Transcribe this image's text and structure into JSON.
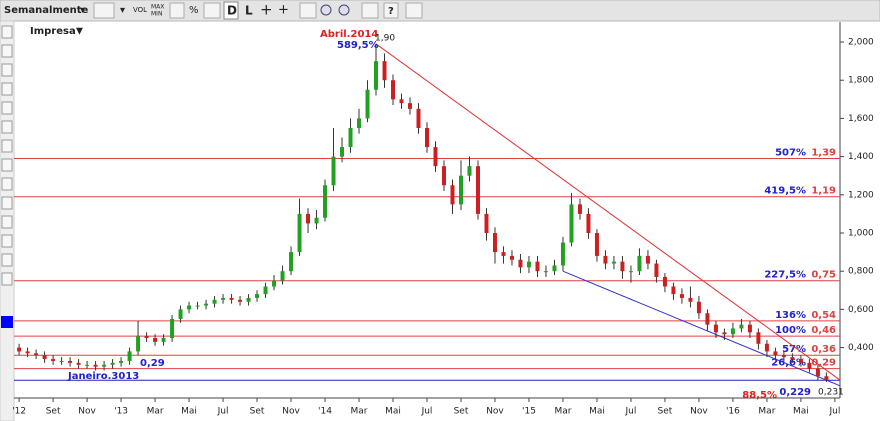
{
  "toolbar": {
    "period": "Semanalmente",
    "buttons": [
      "VOL",
      "MAX",
      "MIN",
      "%",
      "D",
      "L",
      "?"
    ]
  },
  "chart_data": {
    "type": "candlestick",
    "title": "Impresa",
    "up_color": "#22a022",
    "down_color": "#cc2020",
    "xlim": [
      -0.3,
      48.3
    ],
    "ylim": [
      0.136,
      2.063
    ],
    "xticks": [
      {
        "value": 0,
        "label": "'12"
      },
      {
        "value": 2,
        "label": "Set"
      },
      {
        "value": 4,
        "label": "Nov"
      },
      {
        "value": 6,
        "label": "'13"
      },
      {
        "value": 8,
        "label": "Mar"
      },
      {
        "value": 10,
        "label": "Mai"
      },
      {
        "value": 12,
        "label": "Jul"
      },
      {
        "value": 14,
        "label": "Set"
      },
      {
        "value": 16,
        "label": "Nov"
      },
      {
        "value": 18,
        "label": "'14"
      },
      {
        "value": 20,
        "label": "Mar"
      },
      {
        "value": 22,
        "label": "Mai"
      },
      {
        "value": 24,
        "label": "Jul"
      },
      {
        "value": 26,
        "label": "Set"
      },
      {
        "value": 28,
        "label": "Nov"
      },
      {
        "value": 30,
        "label": "'15"
      },
      {
        "value": 32,
        "label": "Mar"
      },
      {
        "value": 34,
        "label": "Mai"
      },
      {
        "value": 36,
        "label": "Jul"
      },
      {
        "value": 38,
        "label": "Set"
      },
      {
        "value": 40,
        "label": "Nov"
      },
      {
        "value": 42,
        "label": "'16"
      },
      {
        "value": 44,
        "label": "Mar"
      },
      {
        "value": 46,
        "label": "Mai"
      },
      {
        "value": 48,
        "label": "Jul"
      }
    ],
    "yticks": [
      {
        "value": 0.4,
        "label": "0,400"
      },
      {
        "value": 0.6,
        "label": "0,600"
      },
      {
        "value": 0.8,
        "label": "0,800"
      },
      {
        "value": 1,
        "label": "1,000"
      },
      {
        "value": 1.2,
        "label": "1,200"
      },
      {
        "value": 1.4,
        "label": "1,400"
      },
      {
        "value": 1.6,
        "label": "1,600"
      },
      {
        "value": 1.8,
        "label": "1,800"
      },
      {
        "value": 2,
        "label": "2,000"
      }
    ],
    "levels": [
      {
        "value": 1.39,
        "label": "1,39",
        "pct": "507%",
        "color": "#e04040"
      },
      {
        "value": 1.19,
        "label": "1,19",
        "pct": "419,5%",
        "color": "#e04040"
      },
      {
        "value": 0.75,
        "label": "0,75",
        "pct": "227,5%",
        "color": "#e04040"
      },
      {
        "value": 0.54,
        "label": "0,54",
        "pct": "136%",
        "color": "#e04040"
      },
      {
        "value": 0.46,
        "label": "0,46",
        "pct": "100%",
        "color": "#e04040"
      },
      {
        "value": 0.36,
        "label": "0,36",
        "pct": "57%",
        "color": "#e04040"
      },
      {
        "value": 0.29,
        "label": "0,29",
        "pct": "26,6%",
        "color": "#e04040"
      },
      {
        "value": 0.229,
        "label": "0,229",
        "pct": "88,5%",
        "color": "#2020c0"
      }
    ],
    "trendlines": [
      {
        "color": "#e03030",
        "points": [
          [
            21,
            1.99
          ],
          [
            48.3,
            0.23
          ]
        ]
      },
      {
        "color": "#3030d0",
        "points": [
          [
            32,
            0.8
          ],
          [
            48.3,
            0.2
          ]
        ]
      }
    ],
    "annotations": [
      "Abril.2014",
      "589,5%",
      "1,90",
      "0,29",
      "Janeiro.3013",
      "0,231"
    ],
    "candles": [
      [
        0,
        0.4,
        0.42,
        0.36,
        0.38
      ],
      [
        0.5,
        0.38,
        0.4,
        0.35,
        0.37
      ],
      [
        1,
        0.37,
        0.39,
        0.34,
        0.36
      ],
      [
        1.5,
        0.36,
        0.38,
        0.32,
        0.34
      ],
      [
        2,
        0.34,
        0.36,
        0.31,
        0.33
      ],
      [
        2.5,
        0.33,
        0.35,
        0.31,
        0.33
      ],
      [
        3,
        0.33,
        0.35,
        0.3,
        0.32
      ],
      [
        3.5,
        0.32,
        0.34,
        0.29,
        0.31
      ],
      [
        4,
        0.31,
        0.33,
        0.29,
        0.31
      ],
      [
        4.5,
        0.31,
        0.33,
        0.28,
        0.3
      ],
      [
        5,
        0.3,
        0.33,
        0.28,
        0.31
      ],
      [
        5.5,
        0.31,
        0.34,
        0.29,
        0.32
      ],
      [
        6,
        0.32,
        0.35,
        0.3,
        0.33
      ],
      [
        6.5,
        0.33,
        0.4,
        0.31,
        0.38
      ],
      [
        7,
        0.38,
        0.54,
        0.36,
        0.46
      ],
      [
        7.5,
        0.46,
        0.48,
        0.43,
        0.45
      ],
      [
        8,
        0.45,
        0.47,
        0.41,
        0.43
      ],
      [
        8.5,
        0.43,
        0.47,
        0.41,
        0.45
      ],
      [
        9,
        0.45,
        0.57,
        0.43,
        0.55
      ],
      [
        9.5,
        0.55,
        0.62,
        0.53,
        0.6
      ],
      [
        10,
        0.6,
        0.64,
        0.58,
        0.62
      ],
      [
        10.5,
        0.62,
        0.64,
        0.6,
        0.62
      ],
      [
        11,
        0.62,
        0.65,
        0.6,
        0.63
      ],
      [
        11.5,
        0.63,
        0.67,
        0.61,
        0.65
      ],
      [
        12,
        0.65,
        0.68,
        0.63,
        0.66
      ],
      [
        12.5,
        0.66,
        0.68,
        0.63,
        0.65
      ],
      [
        13,
        0.65,
        0.67,
        0.62,
        0.64
      ],
      [
        13.5,
        0.64,
        0.68,
        0.62,
        0.66
      ],
      [
        14,
        0.66,
        0.7,
        0.64,
        0.68
      ],
      [
        14.5,
        0.68,
        0.74,
        0.66,
        0.72
      ],
      [
        15,
        0.72,
        0.78,
        0.7,
        0.75
      ],
      [
        15.5,
        0.75,
        0.83,
        0.73,
        0.8
      ],
      [
        16,
        0.8,
        0.93,
        0.78,
        0.9
      ],
      [
        16.5,
        0.9,
        1.18,
        0.88,
        1.1
      ],
      [
        17,
        1.1,
        1.13,
        1.0,
        1.05
      ],
      [
        17.5,
        1.05,
        1.12,
        1.02,
        1.08
      ],
      [
        18,
        1.08,
        1.28,
        1.06,
        1.25
      ],
      [
        18.5,
        1.25,
        1.55,
        1.22,
        1.4
      ],
      [
        19,
        1.4,
        1.5,
        1.37,
        1.45
      ],
      [
        19.5,
        1.45,
        1.6,
        1.42,
        1.55
      ],
      [
        20,
        1.55,
        1.65,
        1.52,
        1.6
      ],
      [
        20.5,
        1.6,
        1.8,
        1.58,
        1.75
      ],
      [
        21,
        1.75,
        1.99,
        1.72,
        1.9
      ],
      [
        21.5,
        1.9,
        1.94,
        1.76,
        1.8
      ],
      [
        22,
        1.8,
        1.83,
        1.67,
        1.7
      ],
      [
        22.5,
        1.7,
        1.73,
        1.65,
        1.68
      ],
      [
        23,
        1.68,
        1.71,
        1.62,
        1.65
      ],
      [
        23.5,
        1.65,
        1.68,
        1.52,
        1.55
      ],
      [
        24,
        1.55,
        1.58,
        1.42,
        1.45
      ],
      [
        24.5,
        1.45,
        1.48,
        1.32,
        1.35
      ],
      [
        25,
        1.35,
        1.38,
        1.22,
        1.25
      ],
      [
        25.5,
        1.25,
        1.28,
        1.1,
        1.15
      ],
      [
        26,
        1.15,
        1.38,
        1.12,
        1.3
      ],
      [
        26.5,
        1.3,
        1.4,
        1.27,
        1.35
      ],
      [
        27,
        1.35,
        1.38,
        1.07,
        1.1
      ],
      [
        27.5,
        1.1,
        1.13,
        0.96,
        1.0
      ],
      [
        28,
        1.0,
        1.03,
        0.84,
        0.9
      ],
      [
        28.5,
        0.9,
        0.93,
        0.84,
        0.88
      ],
      [
        29,
        0.88,
        0.91,
        0.83,
        0.86
      ],
      [
        29.5,
        0.86,
        0.89,
        0.79,
        0.82
      ],
      [
        30,
        0.82,
        0.88,
        0.79,
        0.85
      ],
      [
        30.5,
        0.85,
        0.88,
        0.77,
        0.8
      ],
      [
        31,
        0.8,
        0.83,
        0.77,
        0.8
      ],
      [
        31.5,
        0.8,
        0.86,
        0.78,
        0.83
      ],
      [
        32,
        0.83,
        0.98,
        0.8,
        0.95
      ],
      [
        32.5,
        0.95,
        1.21,
        0.93,
        1.15
      ],
      [
        33,
        1.15,
        1.18,
        1.07,
        1.1
      ],
      [
        33.5,
        1.1,
        1.13,
        0.97,
        1.0
      ],
      [
        34,
        1.0,
        1.02,
        0.85,
        0.88
      ],
      [
        34.5,
        0.88,
        0.91,
        0.81,
        0.84
      ],
      [
        35,
        0.84,
        0.88,
        0.81,
        0.85
      ],
      [
        35.5,
        0.85,
        0.88,
        0.76,
        0.8
      ],
      [
        36,
        0.8,
        0.83,
        0.74,
        0.8
      ],
      [
        36.5,
        0.8,
        0.92,
        0.78,
        0.88
      ],
      [
        37,
        0.88,
        0.91,
        0.81,
        0.84
      ],
      [
        37.5,
        0.84,
        0.86,
        0.74,
        0.77
      ],
      [
        38,
        0.77,
        0.79,
        0.69,
        0.72
      ],
      [
        38.5,
        0.72,
        0.74,
        0.65,
        0.68
      ],
      [
        39,
        0.68,
        0.71,
        0.63,
        0.66
      ],
      [
        39.5,
        0.66,
        0.72,
        0.61,
        0.64
      ],
      [
        40,
        0.64,
        0.67,
        0.55,
        0.58
      ],
      [
        40.5,
        0.58,
        0.6,
        0.49,
        0.52
      ],
      [
        41,
        0.52,
        0.54,
        0.45,
        0.48
      ],
      [
        41.5,
        0.48,
        0.5,
        0.44,
        0.47
      ],
      [
        42,
        0.47,
        0.53,
        0.45,
        0.5
      ],
      [
        42.5,
        0.5,
        0.55,
        0.48,
        0.52
      ],
      [
        43,
        0.52,
        0.54,
        0.45,
        0.48
      ],
      [
        43.5,
        0.48,
        0.5,
        0.39,
        0.42
      ],
      [
        44,
        0.42,
        0.44,
        0.35,
        0.38
      ],
      [
        44.5,
        0.38,
        0.4,
        0.34,
        0.36
      ],
      [
        45,
        0.36,
        0.38,
        0.33,
        0.35
      ],
      [
        45.5,
        0.35,
        0.37,
        0.32,
        0.34
      ],
      [
        46,
        0.34,
        0.36,
        0.3,
        0.32
      ],
      [
        46.5,
        0.32,
        0.34,
        0.27,
        0.29
      ],
      [
        47,
        0.29,
        0.31,
        0.23,
        0.25
      ],
      [
        47.5,
        0.25,
        0.27,
        0.22,
        0.231
      ]
    ]
  }
}
